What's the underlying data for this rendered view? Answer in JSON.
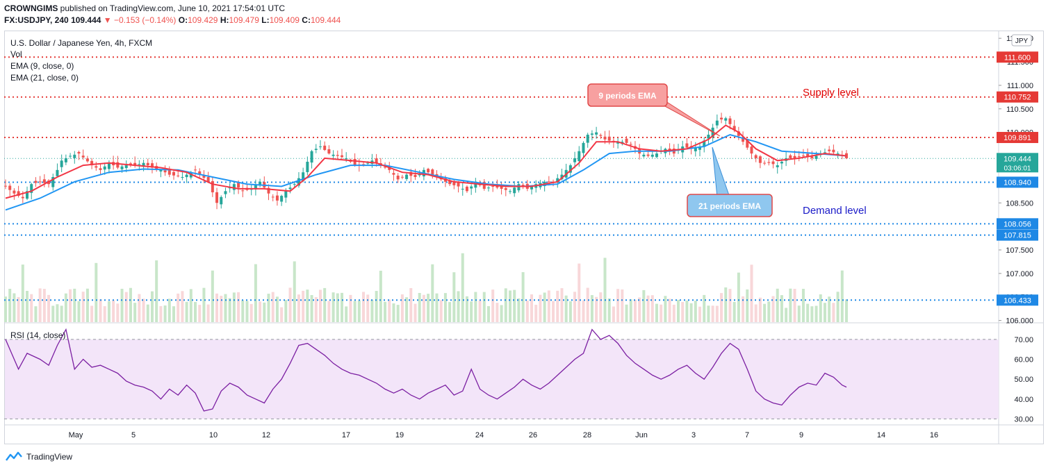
{
  "header": {
    "publisher": "CROWNGIMS",
    "published_text": "published on TradingView.com, June 10, 2021 17:54:01 UTC",
    "symbol": "FX:USDJPY, 240",
    "last": "109.444",
    "change": "▼ −0.153 (−0.14%)",
    "o_label": "O:",
    "o_value": "109.429",
    "h_label": "H:",
    "h_value": "109.479",
    "l_label": "L:",
    "l_value": "109.409",
    "c_label": "C:",
    "c_value": "109.444"
  },
  "legend": {
    "title": "U.S. Dollar / Japanese Yen, 4h, FXCM",
    "vol": "Vol",
    "ema9": "EMA (9, close, 0)",
    "ema21": "EMA (21, close, 0)",
    "rsi": "RSI (14, close)"
  },
  "footer": {
    "brand": "TradingView"
  },
  "colors": {
    "up": "#26a69a",
    "down": "#ef5350",
    "ema9": "#f23645",
    "ema21": "#2196f3",
    "rsi": "#7b1fa2",
    "supply_line": "#e53935",
    "demand_line": "#1e88e5"
  },
  "chart_data": [
    {
      "type": "candlestick",
      "title": "U.S. Dollar / Japanese Yen, 4h, FXCM",
      "currency": "JPY",
      "ylim": [
        105.95,
        112.15
      ],
      "y_ticks": [
        "112.000",
        "111.500",
        "111.000",
        "110.500",
        "110.000",
        "109.500",
        "109.000",
        "108.500",
        "108.000",
        "107.500",
        "107.000",
        "106.500",
        "106.000"
      ],
      "y_tick_values": [
        112.0,
        111.5,
        111.0,
        110.5,
        110.0,
        109.5,
        109.0,
        108.5,
        108.0,
        107.5,
        107.0,
        106.5,
        106.0
      ],
      "x_ticks": [
        "May",
        "5",
        "10",
        "12",
        "17",
        "19",
        "24",
        "26",
        "28",
        "Jun",
        "3",
        "7",
        "9",
        "14",
        "16"
      ],
      "last_price": {
        "value": "109.444",
        "countdown": "03:06:01"
      },
      "horizontal_levels": [
        {
          "label": "111.600",
          "value": 111.6,
          "color": "red"
        },
        {
          "label": "110.752",
          "value": 110.752,
          "color": "red"
        },
        {
          "label": "109.891",
          "value": 109.891,
          "color": "red"
        },
        {
          "label": "108.940",
          "value": 108.94,
          "color": "blue"
        },
        {
          "label": "108.056",
          "value": 108.056,
          "color": "blue"
        },
        {
          "label": "107.815",
          "value": 107.815,
          "color": "blue"
        },
        {
          "label": "106.433",
          "value": 106.433,
          "color": "blue"
        }
      ],
      "annotations": {
        "ema9_callout": "9 periods EMA",
        "ema21_callout": "21 periods EMA",
        "supply": "Supply level",
        "demand": "Demand level"
      },
      "price_path": [
        [
          0,
          108.85
        ],
        [
          2,
          108.7
        ],
        [
          4,
          108.6
        ],
        [
          6,
          108.9
        ],
        [
          8,
          108.95
        ],
        [
          10,
          108.9
        ],
        [
          12,
          109.2
        ],
        [
          13,
          109.4
        ],
        [
          15,
          109.5
        ],
        [
          17,
          109.55
        ],
        [
          20,
          109.3
        ],
        [
          22,
          109.2
        ],
        [
          24,
          109.35
        ],
        [
          26,
          109.25
        ],
        [
          28,
          109.3
        ],
        [
          30,
          109.3
        ],
        [
          32,
          109.35
        ],
        [
          34,
          109.25
        ],
        [
          36,
          109.2
        ],
        [
          38,
          109.1
        ],
        [
          41,
          109.05
        ],
        [
          44,
          109.2
        ],
        [
          47,
          108.95
        ],
        [
          49,
          108.5
        ],
        [
          51,
          108.75
        ],
        [
          53,
          108.9
        ],
        [
          55,
          108.75
        ],
        [
          57,
          108.8
        ],
        [
          59,
          108.95
        ],
        [
          61,
          108.7
        ],
        [
          63,
          108.55
        ],
        [
          65,
          108.75
        ],
        [
          67,
          108.9
        ],
        [
          69,
          109.15
        ],
        [
          71,
          109.6
        ],
        [
          73,
          109.7
        ],
        [
          75,
          109.55
        ],
        [
          77,
          109.5
        ],
        [
          79,
          109.45
        ],
        [
          81,
          109.3
        ],
        [
          83,
          109.3
        ],
        [
          85,
          109.4
        ],
        [
          87,
          109.3
        ],
        [
          89,
          109.2
        ],
        [
          91,
          109.0
        ],
        [
          93,
          109.1
        ],
        [
          95,
          109.05
        ],
        [
          97,
          109.2
        ],
        [
          99,
          109.1
        ],
        [
          101,
          109.0
        ],
        [
          103,
          108.9
        ],
        [
          105,
          108.85
        ],
        [
          107,
          108.75
        ],
        [
          109,
          108.95
        ],
        [
          111,
          108.8
        ],
        [
          113,
          108.85
        ],
        [
          115,
          108.8
        ],
        [
          117,
          108.75
        ],
        [
          119,
          108.9
        ],
        [
          121,
          108.8
        ],
        [
          123,
          108.9
        ],
        [
          125,
          108.95
        ],
        [
          127,
          108.95
        ],
        [
          129,
          109.1
        ],
        [
          131,
          109.3
        ],
        [
          133,
          109.6
        ],
        [
          135,
          109.95
        ],
        [
          137,
          110.0
        ],
        [
          139,
          109.85
        ],
        [
          141,
          109.8
        ],
        [
          143,
          109.8
        ],
        [
          145,
          109.75
        ],
        [
          147,
          109.55
        ],
        [
          149,
          109.5
        ],
        [
          151,
          109.55
        ],
        [
          153,
          109.65
        ],
        [
          155,
          109.55
        ],
        [
          157,
          109.7
        ],
        [
          159,
          109.65
        ],
        [
          161,
          109.7
        ],
        [
          163,
          109.95
        ],
        [
          165,
          110.25
        ],
        [
          167,
          110.3
        ],
        [
          169,
          110.05
        ],
        [
          171,
          109.8
        ],
        [
          173,
          109.55
        ],
        [
          175,
          109.35
        ],
        [
          177,
          109.35
        ],
        [
          179,
          109.3
        ],
        [
          181,
          109.45
        ],
        [
          183,
          109.45
        ],
        [
          185,
          109.5
        ],
        [
          187,
          109.45
        ],
        [
          189,
          109.55
        ],
        [
          191,
          109.6
        ],
        [
          193,
          109.55
        ],
        [
          195,
          109.45
        ]
      ],
      "ema9_path": [
        [
          0,
          108.6
        ],
        [
          6,
          108.75
        ],
        [
          12,
          109.05
        ],
        [
          18,
          109.3
        ],
        [
          24,
          109.35
        ],
        [
          30,
          109.3
        ],
        [
          36,
          109.25
        ],
        [
          42,
          109.15
        ],
        [
          48,
          108.9
        ],
        [
          54,
          108.8
        ],
        [
          60,
          108.8
        ],
        [
          66,
          108.75
        ],
        [
          70,
          109.05
        ],
        [
          74,
          109.45
        ],
        [
          80,
          109.4
        ],
        [
          86,
          109.35
        ],
        [
          92,
          109.15
        ],
        [
          98,
          109.1
        ],
        [
          104,
          108.95
        ],
        [
          110,
          108.9
        ],
        [
          116,
          108.85
        ],
        [
          122,
          108.85
        ],
        [
          128,
          108.95
        ],
        [
          133,
          109.35
        ],
        [
          137,
          109.8
        ],
        [
          142,
          109.8
        ],
        [
          147,
          109.65
        ],
        [
          152,
          109.6
        ],
        [
          158,
          109.65
        ],
        [
          163,
          109.85
        ],
        [
          167,
          110.15
        ],
        [
          170,
          110.0
        ],
        [
          174,
          109.65
        ],
        [
          179,
          109.4
        ],
        [
          184,
          109.45
        ],
        [
          190,
          109.55
        ],
        [
          195,
          109.5
        ]
      ],
      "ema21_path": [
        [
          0,
          108.35
        ],
        [
          8,
          108.6
        ],
        [
          16,
          108.95
        ],
        [
          24,
          109.15
        ],
        [
          32,
          109.22
        ],
        [
          40,
          109.2
        ],
        [
          48,
          109.05
        ],
        [
          56,
          108.9
        ],
        [
          64,
          108.85
        ],
        [
          72,
          109.1
        ],
        [
          80,
          109.3
        ],
        [
          88,
          109.3
        ],
        [
          96,
          109.15
        ],
        [
          104,
          109.0
        ],
        [
          112,
          108.9
        ],
        [
          120,
          108.85
        ],
        [
          128,
          108.9
        ],
        [
          134,
          109.2
        ],
        [
          140,
          109.55
        ],
        [
          146,
          109.6
        ],
        [
          154,
          109.6
        ],
        [
          162,
          109.7
        ],
        [
          168,
          109.95
        ],
        [
          174,
          109.8
        ],
        [
          180,
          109.6
        ],
        [
          188,
          109.55
        ],
        [
          195,
          109.5
        ]
      ]
    },
    {
      "type": "line",
      "title": "RSI (14, close)",
      "ylim": [
        27,
        78
      ],
      "y_ticks": [
        "70.00",
        "60.00",
        "50.00",
        "40.00",
        "30.00"
      ],
      "y_tick_values": [
        70,
        60,
        50,
        40,
        30
      ],
      "bands": [
        30,
        70
      ],
      "series": [
        {
          "name": "RSI (14, close)",
          "values": [
            [
              0,
              70
            ],
            [
              3,
              55
            ],
            [
              5,
              63
            ],
            [
              8,
              60
            ],
            [
              10,
              57
            ],
            [
              12,
              67
            ],
            [
              14,
              75
            ],
            [
              16,
              55
            ],
            [
              18,
              60
            ],
            [
              20,
              56
            ],
            [
              22,
              57
            ],
            [
              24,
              55
            ],
            [
              26,
              53
            ],
            [
              28,
              49
            ],
            [
              30,
              47
            ],
            [
              32,
              46
            ],
            [
              34,
              44
            ],
            [
              36,
              40
            ],
            [
              38,
              45
            ],
            [
              40,
              42
            ],
            [
              42,
              47
            ],
            [
              44,
              43
            ],
            [
              46,
              34
            ],
            [
              48,
              35
            ],
            [
              50,
              44
            ],
            [
              52,
              48
            ],
            [
              54,
              46
            ],
            [
              56,
              42
            ],
            [
              58,
              40
            ],
            [
              60,
              38
            ],
            [
              62,
              45
            ],
            [
              64,
              50
            ],
            [
              66,
              58
            ],
            [
              68,
              67
            ],
            [
              70,
              68
            ],
            [
              72,
              65
            ],
            [
              74,
              62
            ],
            [
              76,
              58
            ],
            [
              78,
              55
            ],
            [
              80,
              53
            ],
            [
              82,
              52
            ],
            [
              84,
              50
            ],
            [
              86,
              48
            ],
            [
              88,
              45
            ],
            [
              90,
              43
            ],
            [
              92,
              45
            ],
            [
              94,
              42
            ],
            [
              96,
              40
            ],
            [
              98,
              43
            ],
            [
              100,
              45
            ],
            [
              102,
              47
            ],
            [
              104,
              42
            ],
            [
              106,
              44
            ],
            [
              108,
              55
            ],
            [
              110,
              45
            ],
            [
              112,
              42
            ],
            [
              114,
              40
            ],
            [
              116,
              43
            ],
            [
              118,
              46
            ],
            [
              120,
              50
            ],
            [
              122,
              47
            ],
            [
              124,
              45
            ],
            [
              126,
              48
            ],
            [
              128,
              52
            ],
            [
              130,
              56
            ],
            [
              132,
              60
            ],
            [
              134,
              63
            ],
            [
              136,
              75
            ],
            [
              138,
              70
            ],
            [
              140,
              72
            ],
            [
              142,
              68
            ],
            [
              144,
              62
            ],
            [
              146,
              58
            ],
            [
              148,
              55
            ],
            [
              150,
              52
            ],
            [
              152,
              50
            ],
            [
              154,
              52
            ],
            [
              156,
              55
            ],
            [
              158,
              57
            ],
            [
              160,
              53
            ],
            [
              162,
              50
            ],
            [
              164,
              56
            ],
            [
              166,
              63
            ],
            [
              168,
              68
            ],
            [
              170,
              65
            ],
            [
              172,
              55
            ],
            [
              174,
              44
            ],
            [
              176,
              40
            ],
            [
              178,
              38
            ],
            [
              180,
              37
            ],
            [
              182,
              42
            ],
            [
              184,
              46
            ],
            [
              186,
              48
            ],
            [
              188,
              47
            ],
            [
              190,
              53
            ],
            [
              192,
              51
            ],
            [
              194,
              47
            ],
            [
              195,
              46
            ]
          ]
        }
      ]
    }
  ]
}
